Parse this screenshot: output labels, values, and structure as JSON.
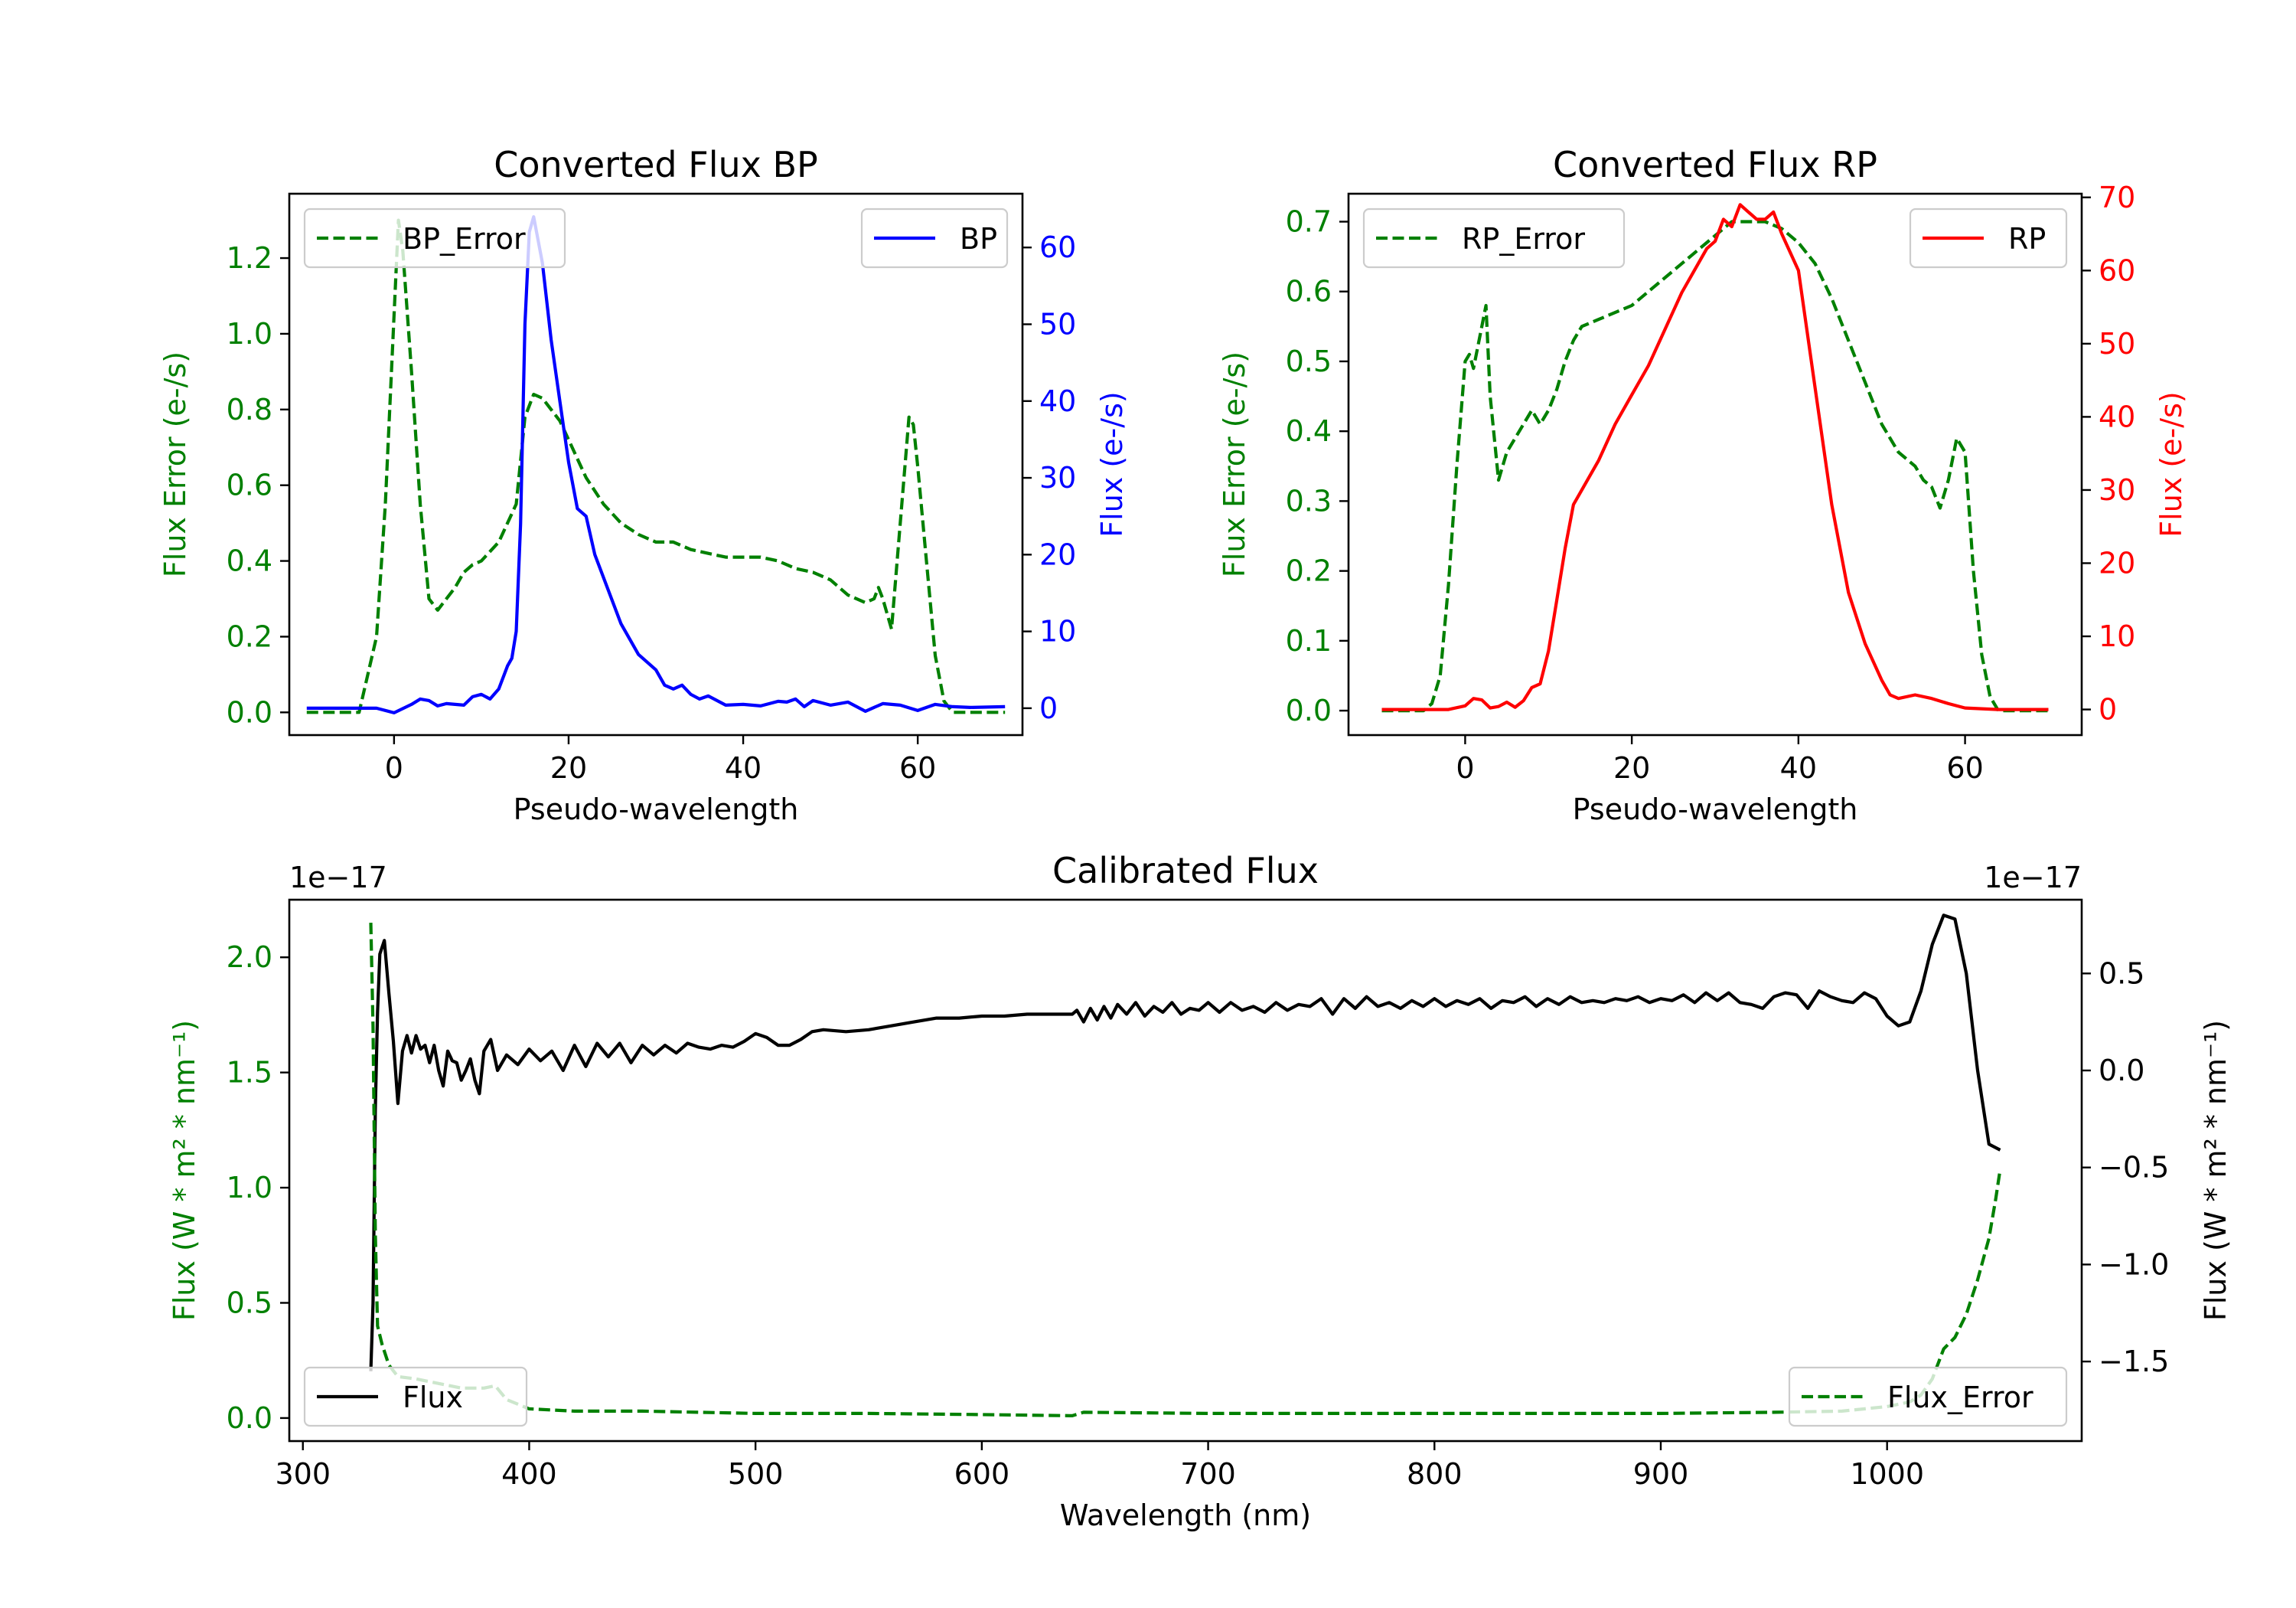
{
  "colors": {
    "error": "#008000",
    "bp": "#0000ff",
    "rp": "#ff0000",
    "flux": "#000000",
    "axis": "#000000"
  },
  "chart_data": [
    {
      "id": "bp",
      "type": "line",
      "title": "Converted Flux BP",
      "xlabel": "Pseudo-wavelength",
      "ylabel_left": "Flux Error (e-/s)",
      "ylabel_right": "Flux (e-/s)",
      "xlim": [
        -12,
        72
      ],
      "ylim_left": [
        -0.06,
        1.37
      ],
      "ylim_right": [
        -3.5,
        67
      ],
      "xticks": [
        0,
        20,
        40,
        60
      ],
      "xtick_labels": [
        "0",
        "20",
        "40",
        "60"
      ],
      "yticks_left": [
        0,
        0.2,
        0.4,
        0.6,
        0.8,
        1.0,
        1.2
      ],
      "ytick_labels_left": [
        "0.0",
        "0.2",
        "0.4",
        "0.6",
        "0.8",
        "1.0",
        "1.2"
      ],
      "yticks_right": [
        0,
        10,
        20,
        30,
        40,
        50,
        60
      ],
      "ytick_labels_right": [
        "0",
        "10",
        "20",
        "30",
        "40",
        "50",
        "60"
      ],
      "legend_left": "top-left",
      "legend_right": "top-right",
      "series": [
        {
          "name": "BP_Error",
          "axis": "left",
          "style": "dashed",
          "color": "#008000",
          "x": [
            -10,
            -4,
            -2,
            -1,
            0,
            0.5,
            1,
            2,
            3,
            4,
            5,
            6,
            7,
            8,
            9,
            10,
            12,
            14,
            15,
            16,
            17,
            18,
            19,
            20,
            22,
            24,
            26,
            28,
            30,
            32,
            34,
            36,
            38,
            40,
            42,
            44,
            46,
            48,
            50,
            52,
            54,
            55,
            55.5,
            56,
            57,
            58,
            59,
            59.5,
            60,
            61,
            62,
            63,
            64,
            65,
            66,
            70
          ],
          "y": [
            0.0,
            0.0,
            0.2,
            0.55,
            1.05,
            1.3,
            1.22,
            0.9,
            0.55,
            0.3,
            0.27,
            0.3,
            0.33,
            0.37,
            0.39,
            0.4,
            0.45,
            0.55,
            0.78,
            0.84,
            0.83,
            0.8,
            0.77,
            0.72,
            0.62,
            0.55,
            0.5,
            0.47,
            0.45,
            0.45,
            0.43,
            0.42,
            0.41,
            0.41,
            0.41,
            0.4,
            0.38,
            0.37,
            0.35,
            0.31,
            0.29,
            0.3,
            0.33,
            0.3,
            0.22,
            0.5,
            0.78,
            0.76,
            0.65,
            0.4,
            0.15,
            0.03,
            0.0,
            0.0,
            0.0,
            0.0
          ]
        },
        {
          "name": "BP",
          "axis": "right",
          "style": "solid",
          "color": "#0000ff",
          "x": [
            -10,
            -4,
            -2,
            0,
            2,
            3,
            4,
            5,
            6,
            8,
            9,
            10,
            11,
            12,
            13,
            13.5,
            14,
            14.5,
            15,
            15.5,
            16,
            17,
            18,
            19,
            20,
            21,
            22,
            23,
            24,
            26,
            28,
            30,
            31,
            32,
            33,
            34,
            35,
            36,
            38,
            40,
            42,
            44,
            45,
            46,
            47,
            48,
            50,
            52,
            54,
            56,
            58,
            60,
            62,
            64,
            66,
            70
          ],
          "y": [
            0,
            0,
            0,
            -0.6,
            0.5,
            1.2,
            1.0,
            0.3,
            0.6,
            0.4,
            1.5,
            1.8,
            1.2,
            2.5,
            5.5,
            6.5,
            10,
            24,
            50,
            62,
            64,
            58,
            48,
            40,
            32,
            26,
            25,
            20,
            17,
            11,
            7,
            5,
            3,
            2.5,
            3,
            1.8,
            1.2,
            1.6,
            0.4,
            0.5,
            0.3,
            0.9,
            0.8,
            1.2,
            0.2,
            1.0,
            0.4,
            0.8,
            -0.4,
            0.6,
            0.4,
            -0.3,
            0.5,
            0.2,
            0.1,
            0.2
          ]
        }
      ],
      "legend": [
        "BP_Error",
        "BP"
      ]
    },
    {
      "id": "rp",
      "type": "line",
      "title": "Converted Flux RP",
      "xlabel": "Pseudo-wavelength",
      "ylabel_left": "Flux Error (e-/s)",
      "ylabel_right": "Flux (e-/s)",
      "xlim": [
        -14,
        74
      ],
      "ylim_left": [
        -0.035,
        0.74
      ],
      "ylim_right": [
        -3.5,
        70.5
      ],
      "xticks": [
        0,
        20,
        40,
        60
      ],
      "xtick_labels": [
        "0",
        "20",
        "40",
        "60"
      ],
      "yticks_left": [
        0,
        0.1,
        0.2,
        0.3,
        0.4,
        0.5,
        0.6,
        0.7
      ],
      "ytick_labels_left": [
        "0.0",
        "0.1",
        "0.2",
        "0.3",
        "0.4",
        "0.5",
        "0.6",
        "0.7"
      ],
      "yticks_right": [
        0,
        10,
        20,
        30,
        40,
        50,
        60,
        70
      ],
      "ytick_labels_right": [
        "0",
        "10",
        "20",
        "30",
        "40",
        "50",
        "60",
        "70"
      ],
      "legend_left": "top-left",
      "legend_right": "top-right",
      "series": [
        {
          "name": "RP_Error",
          "axis": "left",
          "style": "dashed",
          "color": "#008000",
          "x": [
            -10,
            -5,
            -4,
            -3,
            -2,
            -1,
            0,
            0.5,
            1,
            2,
            2.5,
            3,
            4,
            5,
            6,
            7,
            8,
            9,
            10,
            11,
            12,
            13,
            14,
            16,
            18,
            20,
            22,
            24,
            26,
            28,
            30,
            32,
            34,
            36,
            38,
            40,
            42,
            44,
            46,
            48,
            50,
            52,
            54,
            55,
            56,
            57,
            58,
            59,
            60,
            61,
            62,
            63,
            64,
            66,
            70
          ],
          "y": [
            0.0,
            0.0,
            0.01,
            0.05,
            0.18,
            0.35,
            0.5,
            0.51,
            0.49,
            0.55,
            0.58,
            0.45,
            0.33,
            0.37,
            0.39,
            0.41,
            0.43,
            0.41,
            0.43,
            0.46,
            0.5,
            0.53,
            0.55,
            0.56,
            0.57,
            0.58,
            0.6,
            0.62,
            0.64,
            0.66,
            0.68,
            0.7,
            0.7,
            0.7,
            0.69,
            0.67,
            0.64,
            0.59,
            0.53,
            0.47,
            0.41,
            0.37,
            0.35,
            0.33,
            0.32,
            0.29,
            0.33,
            0.39,
            0.37,
            0.2,
            0.08,
            0.02,
            0.0,
            0.0,
            0.0
          ]
        },
        {
          "name": "RP",
          "axis": "right",
          "style": "solid",
          "color": "#ff0000",
          "x": [
            -10,
            -2,
            0,
            1,
            2,
            3,
            4,
            5,
            6,
            7,
            8,
            9,
            10,
            11,
            12,
            13,
            14,
            16,
            18,
            20,
            22,
            24,
            26,
            28,
            29,
            30,
            31,
            32,
            33,
            34,
            35,
            36,
            37,
            38,
            40,
            42,
            44,
            46,
            48,
            50,
            51,
            52,
            54,
            56,
            58,
            60,
            62,
            64,
            66,
            70
          ],
          "y": [
            0,
            0,
            0.5,
            1.5,
            1.3,
            0.2,
            0.4,
            1.0,
            0.3,
            1.2,
            3.0,
            3.5,
            8,
            15,
            22,
            28,
            30,
            34,
            39,
            43,
            47,
            52,
            57,
            61,
            63,
            64,
            67,
            66,
            69,
            68,
            67,
            67,
            68,
            65,
            60,
            44,
            28,
            16,
            9,
            4,
            2,
            1.5,
            2,
            1.5,
            0.8,
            0.2,
            0.1,
            0,
            0,
            0
          ]
        }
      ],
      "legend": [
        "RP_Error",
        "RP"
      ]
    },
    {
      "id": "cal",
      "type": "line",
      "title": "Calibrated Flux",
      "xlabel": "Wavelength (nm)",
      "ylabel_left": "Flux (W * m² * nm⁻¹)",
      "ylabel_right": "Flux (W * m² * nm⁻¹)",
      "offset_left": "1e−17",
      "offset_right": "1e−17",
      "xlim": [
        294,
        1086
      ],
      "ylim_left": [
        -0.1,
        2.25
      ],
      "ylim_right": [
        -1.91,
        0.88
      ],
      "xticks": [
        300,
        400,
        500,
        600,
        700,
        800,
        900,
        1000
      ],
      "xtick_labels": [
        "300",
        "400",
        "500",
        "600",
        "700",
        "800",
        "900",
        "1000"
      ],
      "yticks_left": [
        0,
        0.5,
        1.0,
        1.5,
        2.0
      ],
      "ytick_labels_left": [
        "0.0",
        "0.5",
        "1.0",
        "1.5",
        "2.0"
      ],
      "yticks_right": [
        -1.5,
        -1.0,
        -0.5,
        0,
        0.5
      ],
      "ytick_labels_right": [
        "−1.5",
        "−1.0",
        "−0.5",
        "0.0",
        "0.5"
      ],
      "legend_left": "bottom-left",
      "legend_right": "bottom-right",
      "series": [
        {
          "name": "Flux",
          "axis": "right",
          "style": "solid",
          "color": "#000000",
          "x": [
            330,
            331,
            332,
            333,
            334,
            336,
            338,
            340,
            342,
            344,
            346,
            348,
            350,
            352,
            354,
            356,
            358,
            360,
            362,
            364,
            366,
            368,
            370,
            372,
            374,
            376,
            378,
            380,
            383,
            386,
            390,
            395,
            400,
            405,
            410,
            415,
            420,
            425,
            430,
            435,
            440,
            445,
            450,
            455,
            460,
            465,
            470,
            475,
            480,
            485,
            490,
            495,
            500,
            505,
            510,
            515,
            520,
            525,
            530,
            540,
            550,
            560,
            570,
            580,
            590,
            600,
            610,
            620,
            630,
            640,
            642,
            645,
            648,
            651,
            654,
            657,
            660,
            664,
            668,
            672,
            676,
            680,
            684,
            688,
            692,
            696,
            700,
            705,
            710,
            715,
            720,
            725,
            730,
            735,
            740,
            745,
            750,
            755,
            760,
            765,
            770,
            775,
            780,
            785,
            790,
            795,
            800,
            805,
            810,
            815,
            820,
            825,
            830,
            835,
            840,
            845,
            850,
            855,
            860,
            865,
            870,
            875,
            880,
            885,
            890,
            895,
            900,
            905,
            910,
            915,
            920,
            925,
            930,
            935,
            940,
            945,
            950,
            955,
            960,
            965,
            970,
            975,
            980,
            985,
            990,
            995,
            1000,
            1005,
            1010,
            1015,
            1020,
            1025,
            1030,
            1035,
            1040,
            1045,
            1050
          ],
          "y": [
            -1.55,
            -1.2,
            -0.2,
            0.3,
            0.6,
            0.67,
            0.4,
            0.15,
            -0.17,
            0.1,
            0.18,
            0.09,
            0.18,
            0.11,
            0.13,
            0.04,
            0.13,
            0.0,
            -0.08,
            0.1,
            0.05,
            0.04,
            -0.05,
            0.0,
            0.06,
            -0.05,
            -0.12,
            0.1,
            0.16,
            0.0,
            0.08,
            0.03,
            0.11,
            0.05,
            0.1,
            0.0,
            0.13,
            0.02,
            0.14,
            0.07,
            0.14,
            0.04,
            0.13,
            0.08,
            0.13,
            0.09,
            0.14,
            0.12,
            0.11,
            0.13,
            0.12,
            0.15,
            0.19,
            0.17,
            0.13,
            0.13,
            0.16,
            0.2,
            0.21,
            0.2,
            0.21,
            0.23,
            0.25,
            0.27,
            0.27,
            0.28,
            0.28,
            0.29,
            0.29,
            0.29,
            0.31,
            0.25,
            0.32,
            0.26,
            0.33,
            0.27,
            0.34,
            0.29,
            0.35,
            0.28,
            0.33,
            0.3,
            0.35,
            0.29,
            0.32,
            0.31,
            0.35,
            0.3,
            0.35,
            0.31,
            0.33,
            0.3,
            0.35,
            0.31,
            0.34,
            0.33,
            0.37,
            0.29,
            0.37,
            0.32,
            0.38,
            0.33,
            0.35,
            0.32,
            0.36,
            0.33,
            0.37,
            0.33,
            0.36,
            0.34,
            0.37,
            0.32,
            0.36,
            0.35,
            0.38,
            0.33,
            0.37,
            0.34,
            0.38,
            0.35,
            0.36,
            0.35,
            0.37,
            0.36,
            0.38,
            0.35,
            0.37,
            0.36,
            0.39,
            0.35,
            0.4,
            0.36,
            0.4,
            0.35,
            0.34,
            0.32,
            0.38,
            0.4,
            0.39,
            0.32,
            0.41,
            0.38,
            0.36,
            0.35,
            0.4,
            0.37,
            0.28,
            0.23,
            0.25,
            0.41,
            0.65,
            0.8,
            0.78,
            0.5,
            0.0,
            -0.38,
            -0.41
          ]
        },
        {
          "name": "Flux_Error",
          "axis": "left",
          "style": "dashed",
          "color": "#008000",
          "x": [
            330,
            331,
            332,
            333,
            335,
            338,
            342,
            350,
            360,
            370,
            380,
            385,
            390,
            400,
            420,
            450,
            500,
            550,
            600,
            640,
            645,
            700,
            800,
            900,
            950,
            980,
            1000,
            1010,
            1015,
            1020,
            1025,
            1030,
            1035,
            1040,
            1045,
            1048,
            1050
          ],
          "y": [
            2.15,
            1.7,
            0.8,
            0.4,
            0.32,
            0.23,
            0.18,
            0.17,
            0.15,
            0.13,
            0.13,
            0.14,
            0.08,
            0.04,
            0.03,
            0.03,
            0.02,
            0.02,
            0.015,
            0.01,
            0.025,
            0.02,
            0.02,
            0.02,
            0.025,
            0.03,
            0.05,
            0.07,
            0.1,
            0.17,
            0.3,
            0.35,
            0.45,
            0.6,
            0.78,
            0.95,
            1.08
          ]
        }
      ],
      "legend": [
        "Flux",
        "Flux_Error"
      ]
    }
  ]
}
